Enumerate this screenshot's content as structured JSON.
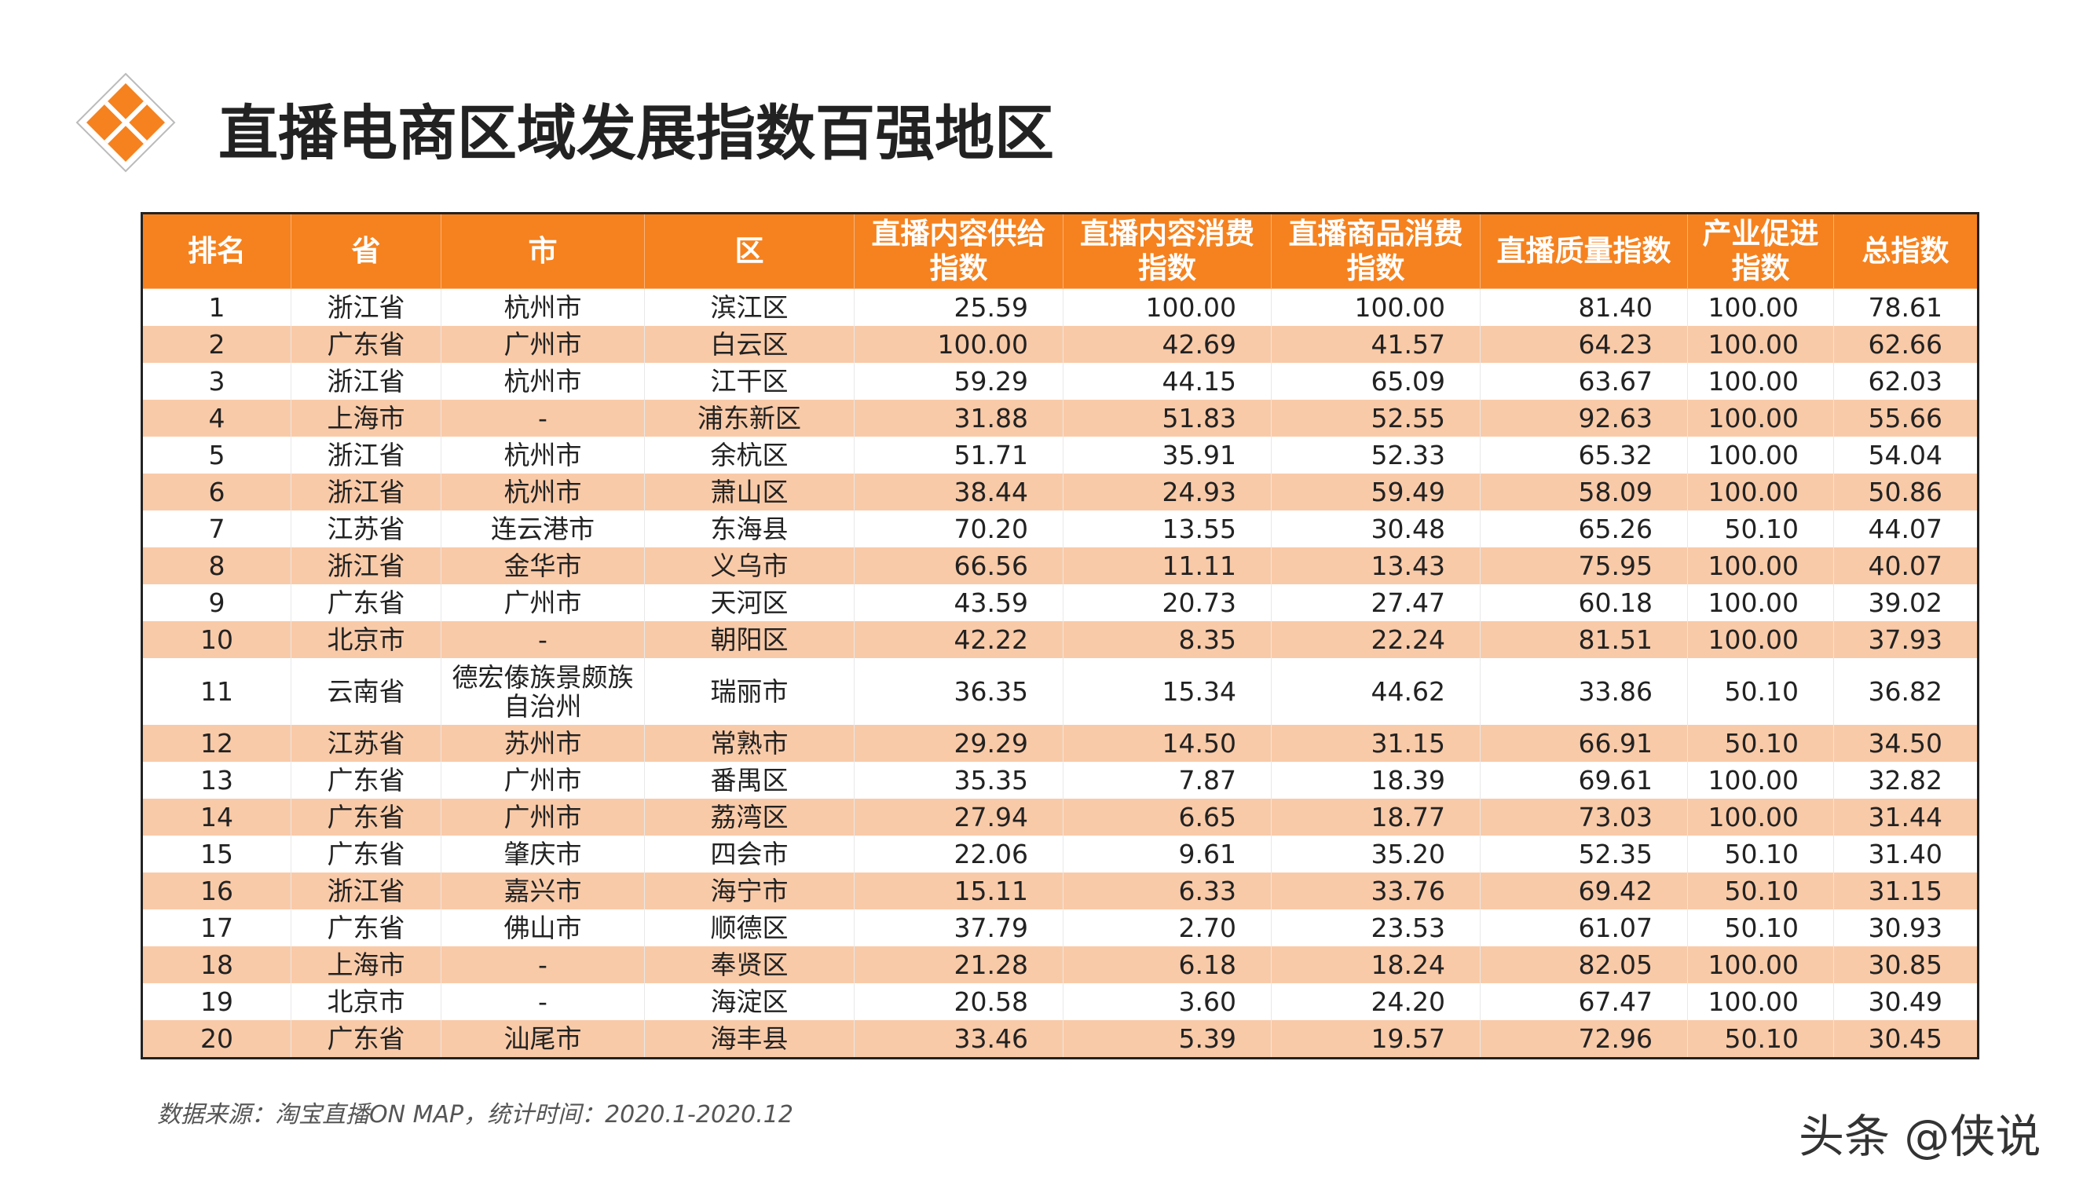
{
  "header": {
    "title": "直播电商区域发展指数百强地区"
  },
  "table": {
    "headers": [
      "排名",
      "省",
      "市",
      "区",
      "直播内容供给指数",
      "直播内容消费指数",
      "直播商品消费指数",
      "直播质量指数",
      "产业促进指数",
      "总指数"
    ],
    "rows": [
      [
        "1",
        "浙江省",
        "杭州市",
        "滨江区",
        "25.59",
        "100.00",
        "100.00",
        "81.40",
        "100.00",
        "78.61"
      ],
      [
        "2",
        "广东省",
        "广州市",
        "白云区",
        "100.00",
        "42.69",
        "41.57",
        "64.23",
        "100.00",
        "62.66"
      ],
      [
        "3",
        "浙江省",
        "杭州市",
        "江干区",
        "59.29",
        "44.15",
        "65.09",
        "63.67",
        "100.00",
        "62.03"
      ],
      [
        "4",
        "上海市",
        "-",
        "浦东新区",
        "31.88",
        "51.83",
        "52.55",
        "92.63",
        "100.00",
        "55.66"
      ],
      [
        "5",
        "浙江省",
        "杭州市",
        "余杭区",
        "51.71",
        "35.91",
        "52.33",
        "65.32",
        "100.00",
        "54.04"
      ],
      [
        "6",
        "浙江省",
        "杭州市",
        "萧山区",
        "38.44",
        "24.93",
        "59.49",
        "58.09",
        "100.00",
        "50.86"
      ],
      [
        "7",
        "江苏省",
        "连云港市",
        "东海县",
        "70.20",
        "13.55",
        "30.48",
        "65.26",
        "50.10",
        "44.07"
      ],
      [
        "8",
        "浙江省",
        "金华市",
        "义乌市",
        "66.56",
        "11.11",
        "13.43",
        "75.95",
        "100.00",
        "40.07"
      ],
      [
        "9",
        "广东省",
        "广州市",
        "天河区",
        "43.59",
        "20.73",
        "27.47",
        "60.18",
        "100.00",
        "39.02"
      ],
      [
        "10",
        "北京市",
        "-",
        "朝阳区",
        "42.22",
        "8.35",
        "22.24",
        "81.51",
        "100.00",
        "37.93"
      ],
      [
        "11",
        "云南省",
        "德宏傣族景颇族自治州",
        "瑞丽市",
        "36.35",
        "15.34",
        "44.62",
        "33.86",
        "50.10",
        "36.82"
      ],
      [
        "12",
        "江苏省",
        "苏州市",
        "常熟市",
        "29.29",
        "14.50",
        "31.15",
        "66.91",
        "50.10",
        "34.50"
      ],
      [
        "13",
        "广东省",
        "广州市",
        "番禺区",
        "35.35",
        "7.87",
        "18.39",
        "69.61",
        "100.00",
        "32.82"
      ],
      [
        "14",
        "广东省",
        "广州市",
        "荔湾区",
        "27.94",
        "6.65",
        "18.77",
        "73.03",
        "100.00",
        "31.44"
      ],
      [
        "15",
        "广东省",
        "肇庆市",
        "四会市",
        "22.06",
        "9.61",
        "35.20",
        "52.35",
        "50.10",
        "31.40"
      ],
      [
        "16",
        "浙江省",
        "嘉兴市",
        "海宁市",
        "15.11",
        "6.33",
        "33.76",
        "69.42",
        "50.10",
        "31.15"
      ],
      [
        "17",
        "广东省",
        "佛山市",
        "顺德区",
        "37.79",
        "2.70",
        "23.53",
        "61.07",
        "50.10",
        "30.93"
      ],
      [
        "18",
        "上海市",
        "-",
        "奉贤区",
        "21.28",
        "6.18",
        "18.24",
        "82.05",
        "100.00",
        "30.85"
      ],
      [
        "19",
        "北京市",
        "-",
        "海淀区",
        "20.58",
        "3.60",
        "24.20",
        "67.47",
        "100.00",
        "30.49"
      ],
      [
        "20",
        "广东省",
        "汕尾市",
        "海丰县",
        "33.46",
        "5.39",
        "19.57",
        "72.96",
        "50.10",
        "30.45"
      ]
    ]
  },
  "footnote": "数据来源：淘宝直播ON MAP，统计时间：2020.1-2020.12",
  "watermark": "头条 @侠说"
}
